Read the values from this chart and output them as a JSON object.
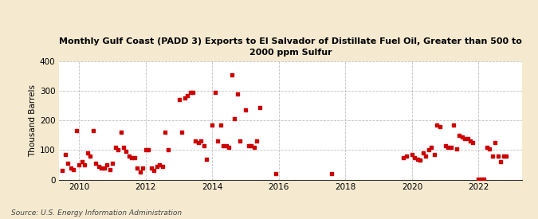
{
  "title": "Monthly Gulf Coast (PADD 3) Exports to El Salvador of Distillate Fuel Oil, Greater than 500 to\n2000 ppm Sulfur",
  "ylabel": "Thousand Barrels",
  "source": "Source: U.S. Energy Information Administration",
  "bg_color": "#f5ead0",
  "plot_bg_color": "#ffffff",
  "dot_color": "#cc0000",
  "dot_size": 9,
  "ylim": [
    0,
    400
  ],
  "yticks": [
    0,
    100,
    200,
    300,
    400
  ],
  "xlim": [
    2009.4,
    2023.3
  ],
  "xticks": [
    2010,
    2012,
    2014,
    2016,
    2018,
    2020,
    2022
  ],
  "data": [
    [
      2009.5,
      30
    ],
    [
      2009.583,
      85
    ],
    [
      2009.667,
      55
    ],
    [
      2009.75,
      40
    ],
    [
      2009.833,
      35
    ],
    [
      2009.917,
      165
    ],
    [
      2010.0,
      50
    ],
    [
      2010.083,
      60
    ],
    [
      2010.167,
      50
    ],
    [
      2010.25,
      90
    ],
    [
      2010.333,
      80
    ],
    [
      2010.417,
      165
    ],
    [
      2010.5,
      55
    ],
    [
      2010.583,
      45
    ],
    [
      2010.667,
      40
    ],
    [
      2010.75,
      40
    ],
    [
      2010.833,
      50
    ],
    [
      2010.917,
      35
    ],
    [
      2011.0,
      55
    ],
    [
      2011.083,
      110
    ],
    [
      2011.167,
      100
    ],
    [
      2011.25,
      160
    ],
    [
      2011.333,
      110
    ],
    [
      2011.417,
      95
    ],
    [
      2011.5,
      80
    ],
    [
      2011.583,
      75
    ],
    [
      2011.667,
      75
    ],
    [
      2011.75,
      40
    ],
    [
      2011.833,
      25
    ],
    [
      2011.917,
      40
    ],
    [
      2012.0,
      100
    ],
    [
      2012.083,
      100
    ],
    [
      2012.167,
      40
    ],
    [
      2012.25,
      30
    ],
    [
      2012.333,
      45
    ],
    [
      2012.417,
      50
    ],
    [
      2012.5,
      45
    ],
    [
      2012.583,
      160
    ],
    [
      2012.667,
      100
    ],
    [
      2013.0,
      270
    ],
    [
      2013.083,
      160
    ],
    [
      2013.167,
      275
    ],
    [
      2013.25,
      285
    ],
    [
      2013.333,
      295
    ],
    [
      2013.417,
      295
    ],
    [
      2013.5,
      130
    ],
    [
      2013.583,
      125
    ],
    [
      2013.667,
      130
    ],
    [
      2013.75,
      115
    ],
    [
      2013.833,
      70
    ],
    [
      2014.0,
      185
    ],
    [
      2014.083,
      295
    ],
    [
      2014.167,
      130
    ],
    [
      2014.25,
      185
    ],
    [
      2014.333,
      115
    ],
    [
      2014.417,
      115
    ],
    [
      2014.5,
      110
    ],
    [
      2014.583,
      355
    ],
    [
      2014.667,
      205
    ],
    [
      2014.75,
      290
    ],
    [
      2014.833,
      130
    ],
    [
      2015.0,
      235
    ],
    [
      2015.083,
      115
    ],
    [
      2015.167,
      115
    ],
    [
      2015.25,
      110
    ],
    [
      2015.333,
      130
    ],
    [
      2015.417,
      245
    ],
    [
      2015.917,
      20
    ],
    [
      2017.583,
      20
    ],
    [
      2019.75,
      75
    ],
    [
      2019.833,
      80
    ],
    [
      2020.0,
      85
    ],
    [
      2020.083,
      75
    ],
    [
      2020.167,
      70
    ],
    [
      2020.25,
      65
    ],
    [
      2020.333,
      90
    ],
    [
      2020.417,
      80
    ],
    [
      2020.5,
      100
    ],
    [
      2020.583,
      110
    ],
    [
      2020.667,
      85
    ],
    [
      2020.75,
      185
    ],
    [
      2020.833,
      180
    ],
    [
      2021.0,
      115
    ],
    [
      2021.083,
      110
    ],
    [
      2021.167,
      110
    ],
    [
      2021.25,
      185
    ],
    [
      2021.333,
      105
    ],
    [
      2021.417,
      150
    ],
    [
      2021.5,
      145
    ],
    [
      2021.583,
      140
    ],
    [
      2021.667,
      140
    ],
    [
      2021.75,
      130
    ],
    [
      2021.833,
      125
    ],
    [
      2022.0,
      2
    ],
    [
      2022.083,
      2
    ],
    [
      2022.167,
      2
    ],
    [
      2022.25,
      110
    ],
    [
      2022.333,
      105
    ],
    [
      2022.417,
      80
    ],
    [
      2022.5,
      125
    ],
    [
      2022.583,
      80
    ],
    [
      2022.667,
      60
    ],
    [
      2022.75,
      80
    ],
    [
      2022.833,
      80
    ]
  ]
}
